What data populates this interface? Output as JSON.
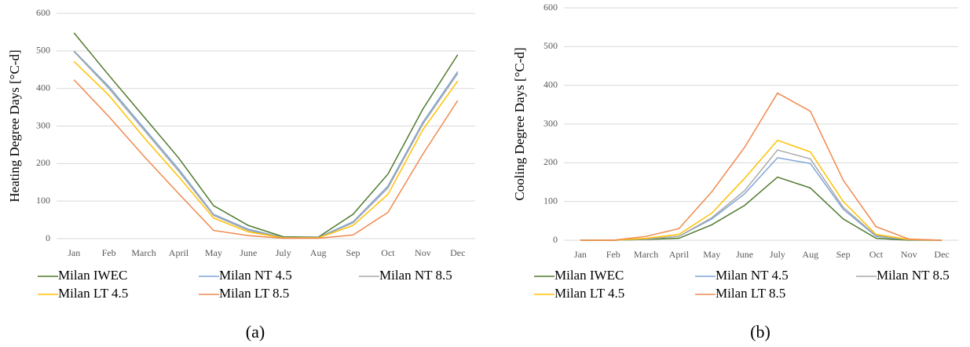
{
  "chart_data": [
    {
      "type": "line",
      "y_label": "Heating Degree Days [°C-d]",
      "caption": "(a)",
      "categories": [
        "Jan",
        "Feb",
        "March",
        "April",
        "May",
        "June",
        "July",
        "Aug",
        "Sep",
        "Oct",
        "Nov",
        "Dec"
      ],
      "ylim": [
        0,
        600
      ],
      "yticks": [
        0,
        100,
        200,
        300,
        400,
        500,
        600
      ],
      "grid": true,
      "series": [
        {
          "name": "Milan IWEC",
          "color": "#4f7a2e",
          "values": [
            548,
            435,
            325,
            215,
            88,
            35,
            5,
            4,
            65,
            172,
            345,
            490
          ]
        },
        {
          "name": "Milan NT 4.5",
          "color": "#7ea6d8",
          "values": [
            500,
            405,
            295,
            185,
            65,
            25,
            3,
            3,
            45,
            140,
            310,
            445
          ]
        },
        {
          "name": "Milan NT 8.5",
          "color": "#a9a9a9",
          "values": [
            498,
            400,
            290,
            180,
            62,
            22,
            2,
            2,
            42,
            135,
            305,
            440
          ]
        },
        {
          "name": "Milan LT 4.5",
          "color": "#ffc000",
          "values": [
            472,
            382,
            270,
            165,
            55,
            18,
            2,
            2,
            35,
            118,
            290,
            420
          ]
        },
        {
          "name": "Milan LT 8.5",
          "color": "#f0894e",
          "values": [
            423,
            325,
            220,
            120,
            22,
            8,
            1,
            1,
            10,
            70,
            225,
            368
          ]
        }
      ]
    },
    {
      "type": "line",
      "y_label": "Cooling Degree Days [°C-d]",
      "caption": "(b)",
      "categories": [
        "Jan",
        "Feb",
        "March",
        "April",
        "May",
        "June",
        "July",
        "Aug",
        "Sep",
        "Oct",
        "Nov",
        "Dec"
      ],
      "ylim": [
        0,
        600
      ],
      "yticks": [
        0,
        100,
        200,
        300,
        400,
        500,
        600
      ],
      "grid": true,
      "series": [
        {
          "name": "Milan IWEC",
          "color": "#4f7a2e",
          "values": [
            0,
            0,
            2,
            5,
            40,
            90,
            163,
            135,
            55,
            5,
            0,
            0
          ]
        },
        {
          "name": "Milan NT 4.5",
          "color": "#7ea6d8",
          "values": [
            0,
            0,
            3,
            10,
            55,
            120,
            213,
            198,
            80,
            10,
            1,
            0
          ]
        },
        {
          "name": "Milan NT 8.5",
          "color": "#a9a9a9",
          "values": [
            0,
            0,
            3,
            10,
            58,
            128,
            233,
            210,
            85,
            12,
            1,
            0
          ]
        },
        {
          "name": "Milan LT 4.5",
          "color": "#ffc000",
          "values": [
            0,
            0,
            5,
            15,
            70,
            160,
            258,
            228,
            100,
            15,
            2,
            0
          ]
        },
        {
          "name": "Milan LT 8.5",
          "color": "#f0894e",
          "values": [
            0,
            0,
            10,
            30,
            125,
            240,
            380,
            333,
            155,
            35,
            3,
            0
          ]
        }
      ]
    }
  ]
}
